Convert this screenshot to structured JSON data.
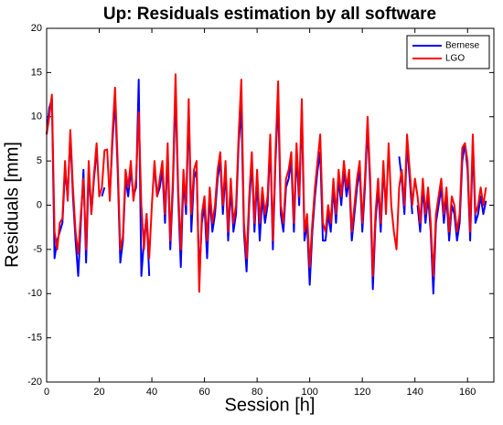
{
  "chart_data": {
    "type": "line",
    "title": "Up: Residuals estimation by all software",
    "x_label": "Session [h]",
    "y_label": "Residuals [mm]",
    "xlim": [
      0,
      170
    ],
    "xticks": [
      0,
      20,
      40,
      60,
      80,
      100,
      120,
      140,
      160
    ],
    "ylim": [
      -20,
      20
    ],
    "yticks": [
      -20,
      -15,
      -10,
      -5,
      0,
      5,
      10,
      15,
      20
    ],
    "legend": "top-right",
    "x": [
      0,
      1,
      2,
      3,
      4,
      5,
      6,
      7,
      8,
      9,
      10,
      11,
      12,
      13,
      14,
      15,
      16,
      17,
      18,
      19,
      20,
      21,
      22,
      23,
      24,
      25,
      26,
      27,
      28,
      29,
      30,
      31,
      32,
      33,
      34,
      35,
      36,
      37,
      38,
      39,
      40,
      41,
      42,
      43,
      44,
      45,
      46,
      47,
      48,
      49,
      50,
      51,
      52,
      53,
      54,
      55,
      56,
      57,
      58,
      59,
      60,
      61,
      62,
      63,
      64,
      65,
      66,
      67,
      68,
      69,
      70,
      71,
      72,
      73,
      74,
      75,
      76,
      77,
      78,
      79,
      80,
      81,
      82,
      83,
      84,
      85,
      86,
      87,
      88,
      89,
      90,
      91,
      92,
      93,
      94,
      95,
      96,
      97,
      98,
      99,
      100,
      101,
      102,
      103,
      104,
      105,
      106,
      107,
      108,
      109,
      110,
      111,
      112,
      113,
      114,
      115,
      116,
      117,
      118,
      119,
      120,
      121,
      122,
      123,
      124,
      125,
      126,
      127,
      128,
      129,
      130,
      131,
      132,
      133,
      134,
      135,
      136,
      137,
      138,
      139,
      140,
      141,
      142,
      143,
      144,
      145,
      146,
      147,
      148,
      149,
      150,
      151,
      152,
      153,
      154,
      155,
      156,
      157,
      158,
      159,
      160,
      161,
      162,
      163,
      164,
      165,
      166,
      167
    ],
    "series": [
      {
        "name": "Bernese",
        "color": "#0000ff",
        "values": [
          8,
          11,
          12,
          -6,
          -4,
          -3,
          -2,
          4,
          1,
          8,
          1,
          -4,
          -8,
          -2,
          4,
          -6.5,
          4,
          -1,
          3,
          6,
          null,
          1,
          2,
          null,
          1,
          7,
          12,
          4,
          -6.5,
          -4,
          3,
          1,
          4,
          1,
          2,
          14.2,
          -8,
          -4,
          -1,
          -8,
          null,
          4,
          1,
          2,
          4,
          -2,
          6,
          -5,
          2,
          13,
          1,
          -7,
          3,
          -1,
          11,
          -3,
          3,
          4,
          -8,
          -2,
          0,
          -6,
          1,
          -3,
          -1,
          3,
          5,
          -1,
          4,
          -4,
          2,
          -3,
          -1,
          7,
          11,
          -3,
          -7.5,
          0,
          5,
          -3,
          3,
          -4,
          1,
          -2,
          0,
          7,
          -5,
          5,
          12,
          -1,
          -3,
          2,
          3,
          5,
          -3,
          6,
          0,
          11,
          -4,
          -2,
          -9,
          -3,
          1,
          4,
          6,
          -4,
          -4,
          -1,
          -3,
          2,
          -2,
          3,
          0,
          4,
          1,
          3,
          -4,
          -1,
          2,
          4,
          -3,
          2,
          9,
          2,
          -9.5,
          -2,
          2,
          -3,
          4,
          0,
          null,
          null,
          null,
          null,
          5.5,
          3,
          -1,
          7,
          3,
          -1,
          null,
          0,
          -3,
          2,
          -2,
          1,
          -3,
          -10,
          -2,
          0,
          2,
          -2,
          1,
          -4,
          0,
          -1,
          -4,
          -2,
          5,
          7,
          4,
          -4,
          7,
          -2,
          -1,
          1,
          -1,
          0.5
        ]
      },
      {
        "name": "LGO",
        "color": "#ff0000",
        "values": [
          8,
          10,
          12.5,
          -3,
          -5,
          -2,
          -1.5,
          5,
          0.5,
          8.5,
          2,
          -3,
          -5.5,
          -1,
          3,
          -5,
          5,
          -1,
          3.5,
          7,
          1,
          2,
          6.2,
          6.3,
          0.5,
          8,
          13.3,
          5,
          -5,
          -3.5,
          4,
          2,
          5,
          0.5,
          3,
          10.5,
          0,
          -5,
          -1,
          -6,
          0,
          5,
          1,
          3,
          5,
          -1,
          7,
          -4,
          3,
          14.8,
          2,
          -5,
          4,
          0,
          12,
          -1,
          4,
          5,
          -9.8,
          -1,
          1,
          -4,
          2,
          -2,
          0,
          4,
          6,
          0,
          5,
          -3,
          3,
          -2,
          0,
          8,
          14.2,
          -2,
          -6,
          1,
          6,
          -2,
          4,
          -2,
          2,
          -1,
          1,
          8,
          -4,
          6,
          14,
          0,
          -2,
          3,
          4,
          6,
          -2,
          7,
          1,
          12,
          -3,
          -1,
          -7,
          -2,
          2,
          5,
          8,
          -2,
          -3,
          0,
          -2,
          3,
          -1,
          4,
          1,
          5,
          2,
          4,
          -3,
          0,
          3,
          5,
          -2,
          3,
          10,
          3,
          -8,
          -1,
          3,
          -2,
          5,
          -1,
          7,
          0,
          -3,
          -5,
          2,
          4,
          0,
          8,
          4,
          0,
          3,
          1,
          -2,
          3,
          -1,
          2,
          -2,
          -8,
          -1,
          1,
          3,
          -1,
          2,
          -3,
          1,
          0,
          -3,
          -1,
          6.5,
          7,
          5,
          -3,
          8,
          -1,
          0,
          2,
          0,
          2
        ]
      }
    ]
  }
}
